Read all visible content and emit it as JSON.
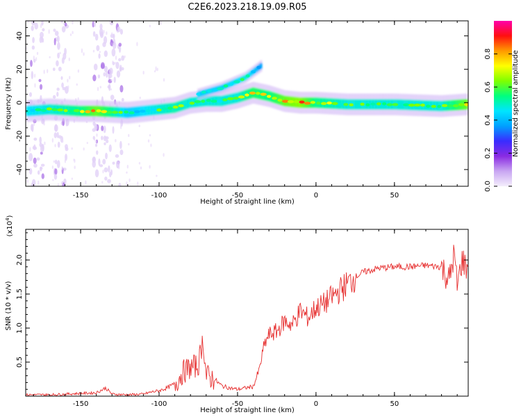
{
  "title": "C2E6.2023.218.19.09.R05",
  "chart_data": [
    {
      "type": "heatmap",
      "name": "spectrogram",
      "xlabel": "Height of straight line (km)",
      "ylabel": "Frequency (Hz)",
      "xlim": [
        -185,
        97
      ],
      "ylim": [
        -50,
        49
      ],
      "xticks": [
        -150,
        -100,
        -50,
        0,
        50
      ],
      "yticks": [
        -40,
        -20,
        0,
        20,
        40
      ],
      "colorbar": {
        "label": "Normalized spectral amplitude",
        "range": [
          0,
          1
        ],
        "ticks": [
          "0.0",
          "0.2",
          "0.4",
          "0.6",
          "0.8"
        ],
        "tick_values": [
          0,
          0.2,
          0.4,
          0.6,
          0.8
        ],
        "colors": [
          "#f4eefc",
          "#c9a6f2",
          "#8a2be2",
          "#3a2cff",
          "#00a0ff",
          "#00e5ff",
          "#00ff7f",
          "#7fff00",
          "#ffff00",
          "#ff9a00",
          "#ff1010",
          "#ff00aa"
        ]
      },
      "main_band": [
        {
          "x": -184,
          "f": -5,
          "amp": 0.55
        },
        {
          "x": -170,
          "f": -4,
          "amp": 0.6
        },
        {
          "x": -150,
          "f": -5,
          "amp": 0.7
        },
        {
          "x": -140,
          "f": -5,
          "amp": 0.85
        },
        {
          "x": -120,
          "f": -6,
          "amp": 0.5
        },
        {
          "x": -100,
          "f": -4,
          "amp": 0.6
        },
        {
          "x": -90,
          "f": -3,
          "amp": 0.65
        },
        {
          "x": -80,
          "f": 0,
          "amp": 0.6
        },
        {
          "x": -70,
          "f": 1,
          "amp": 0.6
        },
        {
          "x": -60,
          "f": 1,
          "amp": 0.6
        },
        {
          "x": -50,
          "f": 3,
          "amp": 0.6
        },
        {
          "x": -40,
          "f": 6,
          "amp": 0.75
        },
        {
          "x": -30,
          "f": 4,
          "amp": 0.7
        },
        {
          "x": -20,
          "f": 1,
          "amp": 0.85
        },
        {
          "x": -10,
          "f": 0,
          "amp": 0.9
        },
        {
          "x": 0,
          "f": 0,
          "amp": 0.7
        },
        {
          "x": 20,
          "f": -1,
          "amp": 0.6
        },
        {
          "x": 50,
          "f": -1,
          "amp": 0.6
        },
        {
          "x": 80,
          "f": -2,
          "amp": 0.6
        },
        {
          "x": 96,
          "f": -1,
          "amp": 0.85
        }
      ],
      "upper_branch": [
        {
          "x": -75,
          "f": 5,
          "amp": 0.5
        },
        {
          "x": -60,
          "f": 9,
          "amp": 0.5
        },
        {
          "x": -50,
          "f": 13,
          "amp": 0.55
        },
        {
          "x": -45,
          "f": 15,
          "amp": 0.6
        },
        {
          "x": -35,
          "f": 22,
          "amp": 0.4
        }
      ],
      "noise_columns_x": [
        -180,
        -175,
        -165,
        -160,
        -140,
        -135,
        -130,
        -125
      ]
    },
    {
      "type": "line",
      "name": "snr",
      "xlabel": "Height of straight line (km)",
      "ylabel": "SNR (10 * v/v)",
      "scale_label": "(x10",
      "scale_exp": "4",
      "scale_close": ")",
      "xlim": [
        -185,
        97
      ],
      "ylim": [
        0,
        2.45
      ],
      "xticks": [
        -150,
        -100,
        -50,
        0,
        50
      ],
      "yticks": [
        0.5,
        1.0,
        1.5,
        2.0
      ],
      "ytick_labels": [
        "0.5",
        "1.0",
        "1.5",
        "2.0"
      ],
      "color": "#e62e2e",
      "points": [
        [
          -185,
          0.02
        ],
        [
          -170,
          0.02
        ],
        [
          -160,
          0.03
        ],
        [
          -150,
          0.04
        ],
        [
          -140,
          0.05
        ],
        [
          -134,
          0.12
        ],
        [
          -130,
          0.03
        ],
        [
          -120,
          0.02
        ],
        [
          -110,
          0.03
        ],
        [
          -105,
          0.06
        ],
        [
          -100,
          0.08
        ],
        [
          -95,
          0.12
        ],
        [
          -90,
          0.18
        ],
        [
          -85,
          0.35
        ],
        [
          -80,
          0.42
        ],
        [
          -75,
          0.45
        ],
        [
          -72,
          0.85
        ],
        [
          -70,
          0.3
        ],
        [
          -65,
          0.25
        ],
        [
          -60,
          0.15
        ],
        [
          -55,
          0.12
        ],
        [
          -50,
          0.1
        ],
        [
          -45,
          0.12
        ],
        [
          -40,
          0.14
        ],
        [
          -36,
          0.4
        ],
        [
          -33,
          0.75
        ],
        [
          -30,
          0.9
        ],
        [
          -25,
          0.95
        ],
        [
          -20,
          1.1
        ],
        [
          -15,
          1.05
        ],
        [
          -10,
          1.25
        ],
        [
          -5,
          1.15
        ],
        [
          0,
          1.3
        ],
        [
          5,
          1.35
        ],
        [
          10,
          1.45
        ],
        [
          15,
          1.55
        ],
        [
          20,
          1.65
        ],
        [
          25,
          1.75
        ],
        [
          30,
          1.82
        ],
        [
          40,
          1.88
        ],
        [
          50,
          1.9
        ],
        [
          60,
          1.9
        ],
        [
          70,
          1.92
        ],
        [
          80,
          1.9
        ],
        [
          85,
          1.7
        ],
        [
          88,
          2.1
        ],
        [
          90,
          1.6
        ],
        [
          93,
          2.0
        ],
        [
          96,
          1.9
        ]
      ]
    }
  ]
}
